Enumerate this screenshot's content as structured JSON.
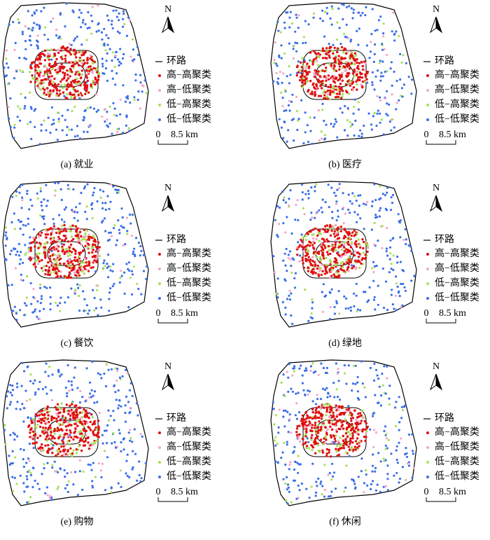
{
  "panels": [
    {
      "caption": "(a) 就业"
    },
    {
      "caption": "(b) 医疗"
    },
    {
      "caption": "(c) 餐饮"
    },
    {
      "caption": "(d) 绿地"
    },
    {
      "caption": "(e) 购物"
    },
    {
      "caption": "(f) 休闲"
    }
  ],
  "legend": [
    "环路",
    "高−高聚类",
    "高−低聚类",
    "低−高聚类",
    "低−低聚类"
  ],
  "north": "N",
  "scale": [
    "0",
    "8.5 km"
  ]
}
